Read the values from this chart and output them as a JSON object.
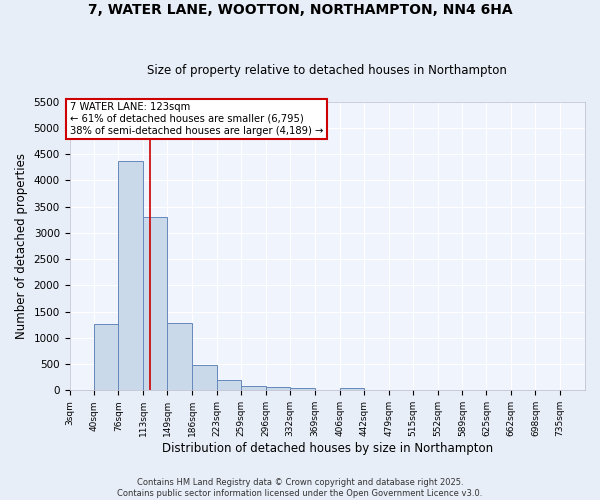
{
  "title1": "7, WATER LANE, WOOTTON, NORTHAMPTON, NN4 6HA",
  "title2": "Size of property relative to detached houses in Northampton",
  "xlabel": "Distribution of detached houses by size in Northampton",
  "ylabel": "Number of detached properties",
  "bin_labels": [
    "3sqm",
    "40sqm",
    "76sqm",
    "113sqm",
    "149sqm",
    "186sqm",
    "223sqm",
    "259sqm",
    "296sqm",
    "332sqm",
    "369sqm",
    "406sqm",
    "442sqm",
    "479sqm",
    "515sqm",
    "552sqm",
    "589sqm",
    "625sqm",
    "662sqm",
    "698sqm",
    "735sqm"
  ],
  "bin_edges": [
    3,
    40,
    76,
    113,
    149,
    186,
    223,
    259,
    296,
    332,
    369,
    406,
    442,
    479,
    515,
    552,
    589,
    625,
    662,
    698,
    735
  ],
  "bar_heights": [
    0,
    1270,
    4380,
    3300,
    1280,
    490,
    200,
    80,
    60,
    50,
    0,
    50,
    0,
    0,
    0,
    0,
    0,
    0,
    0,
    0,
    0
  ],
  "bar_color": "#c9d9ea",
  "bar_edge_color": "#6688bb",
  "vline_x": 123,
  "vline_color": "#cc0000",
  "annotation_text": "7 WATER LANE: 123sqm\n← 61% of detached houses are smaller (6,795)\n38% of semi-detached houses are larger (4,189) →",
  "annotation_box_color": "#ffffff",
  "annotation_box_edge": "#cc0000",
  "ylim": [
    0,
    5500
  ],
  "yticks": [
    0,
    500,
    1000,
    1500,
    2000,
    2500,
    3000,
    3500,
    4000,
    4500,
    5000,
    5500
  ],
  "bg_color": "#e8eef8",
  "plot_bg_color": "#f0f4fc",
  "grid_color": "#ffffff",
  "footer1": "Contains HM Land Registry data © Crown copyright and database right 2025.",
  "footer2": "Contains public sector information licensed under the Open Government Licence v3.0."
}
